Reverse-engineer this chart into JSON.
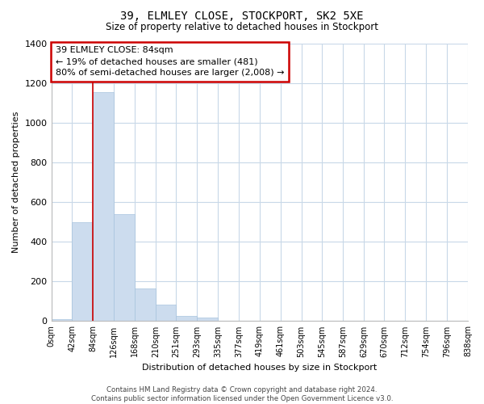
{
  "title": "39, ELMLEY CLOSE, STOCKPORT, SK2 5XE",
  "subtitle": "Size of property relative to detached houses in Stockport",
  "xlabel": "Distribution of detached houses by size in Stockport",
  "ylabel": "Number of detached properties",
  "bar_color": "#ccdcee",
  "bar_edge_color": "#a8c4de",
  "marker_color": "#cc0000",
  "marker_value": 84,
  "bin_edges": [
    0,
    42,
    84,
    126,
    168,
    210,
    251,
    293,
    335,
    377,
    419,
    461,
    503,
    545,
    587,
    629,
    670,
    712,
    754,
    796,
    838
  ],
  "bin_labels": [
    "0sqm",
    "42sqm",
    "84sqm",
    "126sqm",
    "168sqm",
    "210sqm",
    "251sqm",
    "293sqm",
    "335sqm",
    "377sqm",
    "419sqm",
    "461sqm",
    "503sqm",
    "545sqm",
    "587sqm",
    "629sqm",
    "670sqm",
    "712sqm",
    "754sqm",
    "796sqm",
    "838sqm"
  ],
  "bar_heights": [
    10,
    500,
    1155,
    540,
    165,
    85,
    28,
    20,
    0,
    0,
    0,
    0,
    0,
    0,
    0,
    0,
    0,
    0,
    0,
    0
  ],
  "ylim": [
    0,
    1400
  ],
  "yticks": [
    0,
    200,
    400,
    600,
    800,
    1000,
    1200,
    1400
  ],
  "annotation_lines": [
    "39 ELMLEY CLOSE: 84sqm",
    "← 19% of detached houses are smaller (481)",
    "80% of semi-detached houses are larger (2,008) →"
  ],
  "footer_line1": "Contains HM Land Registry data © Crown copyright and database right 2024.",
  "footer_line2": "Contains public sector information licensed under the Open Government Licence v3.0.",
  "background_color": "#ffffff",
  "grid_color": "#c8d8e8"
}
